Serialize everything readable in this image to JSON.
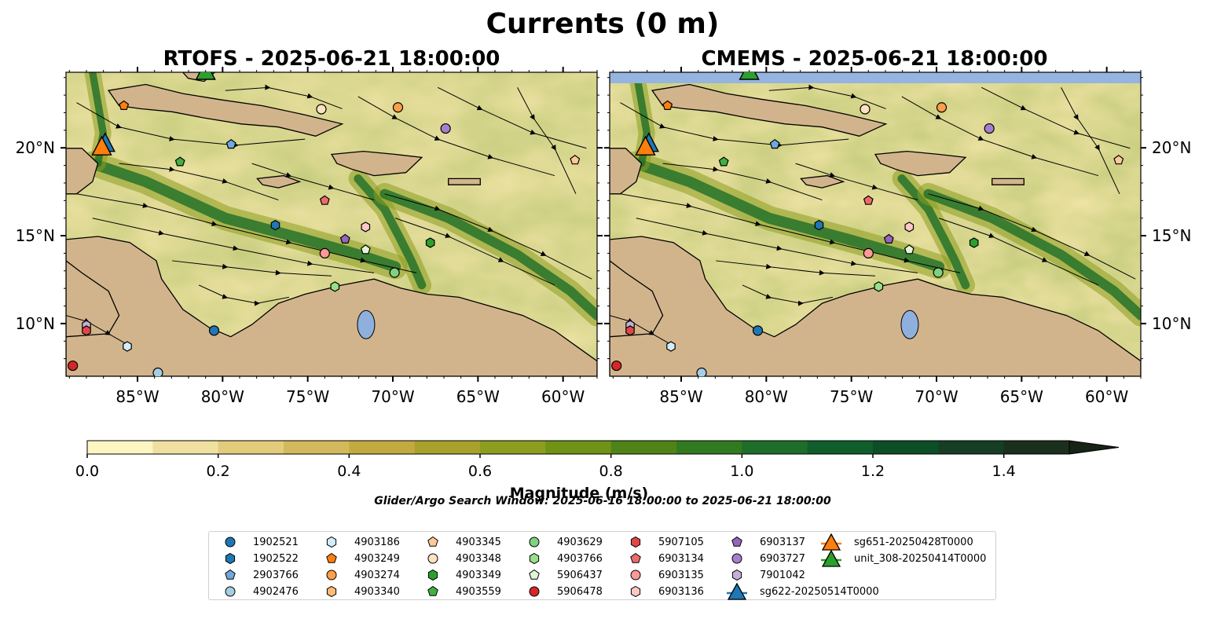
{
  "figure": {
    "title": "Currents (0 m)",
    "search_window": "Glider/Argo Search Window: 2025-06-16 18:00:00 to 2025-06-21 18:00:00"
  },
  "chart_data": [
    {
      "type": "heatmap",
      "title": "RTOFS - 2025-06-21 18:00:00",
      "x_tick_labels": [
        "85°W",
        "80°W",
        "75°W",
        "70°W",
        "65°W",
        "60°W"
      ],
      "y_tick_labels": [
        "10°N",
        "15°N",
        "20°N"
      ],
      "xlim": [
        -89.2,
        -58.0
      ],
      "ylim": [
        7.0,
        24.3
      ],
      "colorbar": {
        "label": "Magnitude (m/s)",
        "ticks": [
          "0.0",
          "0.2",
          "0.4",
          "0.6",
          "0.8",
          "1.0",
          "1.2",
          "1.4"
        ],
        "range": [
          0.0,
          1.5
        ],
        "extend": "max",
        "colors": [
          "#fdf6c3",
          "#f0e0a0",
          "#e2cc7c",
          "#d3b95c",
          "#c2aa40",
          "#a8a22c",
          "#8d9d1f",
          "#6f9217",
          "#4f8318",
          "#327a1f",
          "#1d6e28",
          "#0f5e2b",
          "#0d4e27",
          "#153e24",
          "#1a2f1c",
          "#162316"
        ]
      },
      "floats": [
        {
          "id": "1902521",
          "lon": -80.5,
          "lat": 9.6
        },
        {
          "id": "6903137",
          "lon": -72.8,
          "lat": 14.8
        },
        {
          "id": "4903766",
          "lon": -73.4,
          "lat": 12.1
        },
        {
          "id": "5906437",
          "lon": -71.6,
          "lat": 14.2
        },
        {
          "id": "6903136",
          "lon": -71.6,
          "lat": 15.5
        },
        {
          "id": "6903135",
          "lon": -74.0,
          "lat": 14.0
        },
        {
          "id": "6903134",
          "lon": -74.0,
          "lat": 17.0
        },
        {
          "id": "4903559",
          "lon": -82.5,
          "lat": 19.2
        },
        {
          "id": "2903766",
          "lon": -79.5,
          "lat": 20.2
        },
        {
          "id": "4903249",
          "lon": -85.8,
          "lat": 22.4
        },
        {
          "id": "4903348",
          "lon": -74.2,
          "lat": 22.2
        },
        {
          "id": "4903274",
          "lon": -69.7,
          "lat": 22.3
        },
        {
          "id": "6903727",
          "lon": -66.9,
          "lat": 21.1
        },
        {
          "id": "4903345",
          "lon": -59.3,
          "lat": 19.3
        },
        {
          "id": "1902522",
          "lon": -76.9,
          "lat": 15.6
        },
        {
          "id": "4903349",
          "lon": -67.8,
          "lat": 14.6
        },
        {
          "id": "4903629",
          "lon": -69.9,
          "lat": 12.9
        },
        {
          "id": "7901042",
          "lon": -88.0,
          "lat": 9.9
        },
        {
          "id": "5907105",
          "lon": -88.0,
          "lat": 9.6
        },
        {
          "id": "4903186",
          "lon": -85.6,
          "lat": 8.7
        },
        {
          "id": "4902476",
          "lon": -83.8,
          "lat": 7.2
        },
        {
          "id": "5906478",
          "lon": -88.8,
          "lat": 7.6
        }
      ],
      "gliders": [
        {
          "id": "sg622-20250514T0000",
          "lon": -86.9,
          "lat": 20.2
        },
        {
          "id": "sg651-20250428T0000",
          "lon": -87.1,
          "lat": 20.0
        },
        {
          "id": "unit_308-20250414T0000",
          "lon": -81.0,
          "lat": 24.3
        }
      ]
    },
    {
      "type": "heatmap",
      "title": "CMEMS - 2025-06-21 18:00:00",
      "x_tick_labels": [
        "85°W",
        "80°W",
        "75°W",
        "70°W",
        "65°W",
        "60°W"
      ],
      "y_tick_labels": [
        "10°N",
        "15°N",
        "20°N"
      ],
      "xlim": [
        -89.2,
        -58.0
      ],
      "ylim": [
        7.0,
        24.3
      ],
      "note_band": "light blue band (no data) along top edge",
      "floats": [
        {
          "id": "1902521",
          "lon": -80.5,
          "lat": 9.6
        },
        {
          "id": "6903137",
          "lon": -72.8,
          "lat": 14.8
        },
        {
          "id": "4903766",
          "lon": -73.4,
          "lat": 12.1
        },
        {
          "id": "5906437",
          "lon": -71.6,
          "lat": 14.2
        },
        {
          "id": "6903136",
          "lon": -71.6,
          "lat": 15.5
        },
        {
          "id": "6903135",
          "lon": -74.0,
          "lat": 14.0
        },
        {
          "id": "6903134",
          "lon": -74.0,
          "lat": 17.0
        },
        {
          "id": "4903559",
          "lon": -82.5,
          "lat": 19.2
        },
        {
          "id": "2903766",
          "lon": -79.5,
          "lat": 20.2
        },
        {
          "id": "4903249",
          "lon": -85.8,
          "lat": 22.4
        },
        {
          "id": "4903348",
          "lon": -74.2,
          "lat": 22.2
        },
        {
          "id": "4903274",
          "lon": -69.7,
          "lat": 22.3
        },
        {
          "id": "6903727",
          "lon": -66.9,
          "lat": 21.1
        },
        {
          "id": "4903345",
          "lon": -59.3,
          "lat": 19.3
        },
        {
          "id": "1902522",
          "lon": -76.9,
          "lat": 15.6
        },
        {
          "id": "4903349",
          "lon": -67.8,
          "lat": 14.6
        },
        {
          "id": "4903629",
          "lon": -69.9,
          "lat": 12.9
        },
        {
          "id": "7901042",
          "lon": -88.0,
          "lat": 9.9
        },
        {
          "id": "5907105",
          "lon": -88.0,
          "lat": 9.6
        },
        {
          "id": "4903186",
          "lon": -85.6,
          "lat": 8.7
        },
        {
          "id": "4902476",
          "lon": -83.8,
          "lat": 7.2
        },
        {
          "id": "5906478",
          "lon": -88.8,
          "lat": 7.6
        }
      ],
      "gliders": [
        {
          "id": "sg622-20250514T0000",
          "lon": -86.9,
          "lat": 20.2
        },
        {
          "id": "sg651-20250428T0000",
          "lon": -87.1,
          "lat": 20.0
        },
        {
          "id": "unit_308-20250414T0000",
          "lon": -81.0,
          "lat": 24.3
        }
      ]
    }
  ],
  "legend": [
    {
      "id": "1902521",
      "shape": "circle",
      "color": "#1f77b4"
    },
    {
      "id": "1902522",
      "shape": "hexagon",
      "color": "#1f77b4"
    },
    {
      "id": "2903766",
      "shape": "pentagon",
      "color": "#6fa7de"
    },
    {
      "id": "4902476",
      "shape": "circle",
      "color": "#a6cee3"
    },
    {
      "id": "4903186",
      "shape": "hexagon",
      "color": "#d2ecfb"
    },
    {
      "id": "4903249",
      "shape": "pentagon",
      "color": "#ff7f0e"
    },
    {
      "id": "4903274",
      "shape": "circle",
      "color": "#ff9e4a"
    },
    {
      "id": "4903340",
      "shape": "hexagon",
      "color": "#ffbb78"
    },
    {
      "id": "4903345",
      "shape": "pentagon",
      "color": "#ffc896"
    },
    {
      "id": "4903348",
      "shape": "circle",
      "color": "#fde2c2"
    },
    {
      "id": "4903349",
      "shape": "hexagon",
      "color": "#2ca02c"
    },
    {
      "id": "4903559",
      "shape": "pentagon",
      "color": "#41b041"
    },
    {
      "id": "4903629",
      "shape": "circle",
      "color": "#7fd17f"
    },
    {
      "id": "4903766",
      "shape": "hexagon",
      "color": "#98df8a"
    },
    {
      "id": "5906437",
      "shape": "pentagon",
      "color": "#dff5d6"
    },
    {
      "id": "5906478",
      "shape": "circle",
      "color": "#d62728"
    },
    {
      "id": "5907105",
      "shape": "hexagon",
      "color": "#e04848"
    },
    {
      "id": "6903134",
      "shape": "pentagon",
      "color": "#ec6b6b"
    },
    {
      "id": "6903135",
      "shape": "circle",
      "color": "#ff9896"
    },
    {
      "id": "6903136",
      "shape": "hexagon",
      "color": "#ffc8c6"
    },
    {
      "id": "6903137",
      "shape": "pentagon",
      "color": "#9467bd"
    },
    {
      "id": "6903727",
      "shape": "circle",
      "color": "#a57fcc"
    },
    {
      "id": "7901042",
      "shape": "hexagon",
      "color": "#c5b0d5"
    },
    {
      "id": "sg622-20250514T0000",
      "shape": "triangle",
      "color": "#1f77b4"
    },
    {
      "id": "sg651-20250428T0000",
      "shape": "triangle",
      "color": "#ff7f0e"
    },
    {
      "id": "unit_308-20250414T0000",
      "shape": "triangle",
      "color": "#2ca02c"
    }
  ]
}
